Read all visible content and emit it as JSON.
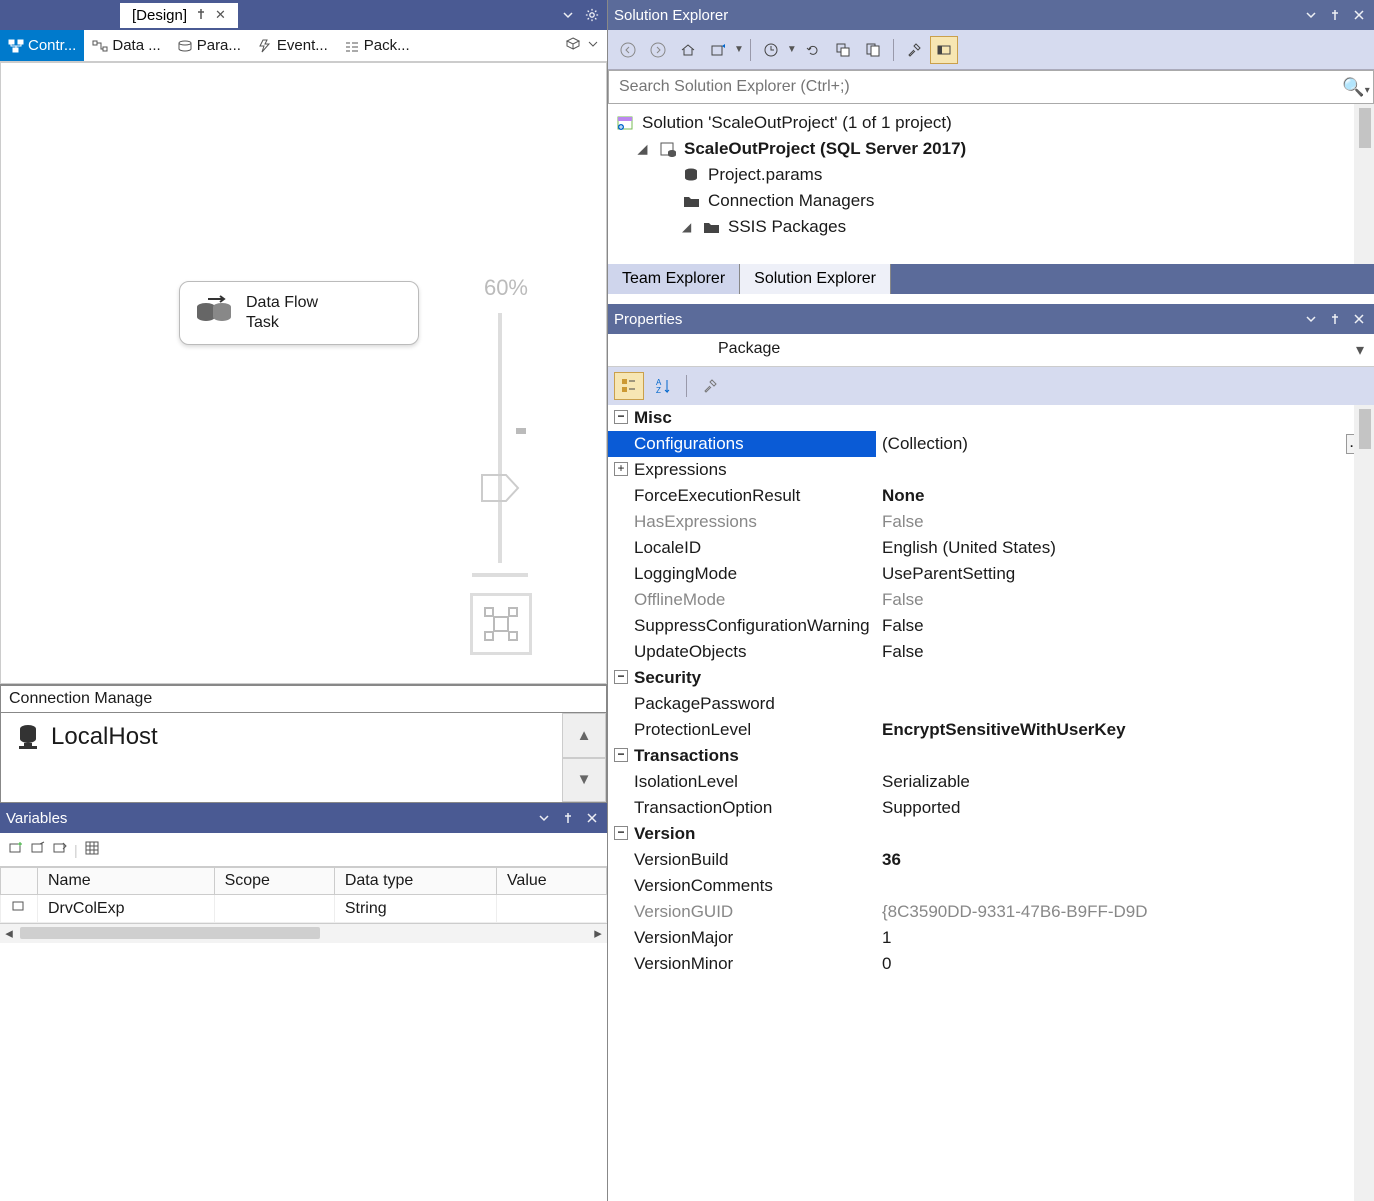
{
  "design": {
    "tab_label": "[Design]",
    "subtabs": [
      "Contr...",
      "Data ...",
      "Para...",
      "Event...",
      "Pack..."
    ],
    "active_subtab": 0,
    "task_label": "Data Flow Task",
    "zoom_label": "60%"
  },
  "connection_manager": {
    "header": "Connection Manage",
    "item": "LocalHost"
  },
  "variables": {
    "title": "Variables",
    "columns": [
      "Name",
      "Scope",
      "Data type",
      "Value"
    ],
    "rows": [
      {
        "name": "DrvColExp",
        "scope": "",
        "data_type": "String",
        "value": ""
      }
    ]
  },
  "solution_explorer": {
    "title": "Solution Explorer",
    "search_placeholder": "Search Solution Explorer (Ctrl+;)",
    "tree": {
      "solution": "Solution 'ScaleOutProject' (1 of 1 project)",
      "project": "ScaleOutProject (SQL Server 2017)",
      "items": [
        "Project.params",
        "Connection Managers",
        "SSIS Packages"
      ]
    },
    "bottom_tabs": [
      "Team Explorer",
      "Solution Explorer"
    ]
  },
  "properties": {
    "title": "Properties",
    "selected_object": "Package",
    "categories": [
      {
        "name": "Misc",
        "rows": [
          {
            "name": "Configurations",
            "value": "(Collection)",
            "selected": true,
            "ellipsis": true
          },
          {
            "name": "Expressions",
            "value": "",
            "expander": true
          },
          {
            "name": "ForceExecutionResult",
            "value": "None",
            "bold": true
          },
          {
            "name": "HasExpressions",
            "value": "False",
            "dim": true
          },
          {
            "name": "LocaleID",
            "value": "English (United States)"
          },
          {
            "name": "LoggingMode",
            "value": "UseParentSetting"
          },
          {
            "name": "OfflineMode",
            "value": "False",
            "dim": true
          },
          {
            "name": "SuppressConfigurationWarning",
            "value": "False"
          },
          {
            "name": "UpdateObjects",
            "value": "False"
          }
        ]
      },
      {
        "name": "Security",
        "rows": [
          {
            "name": "PackagePassword",
            "value": ""
          },
          {
            "name": "ProtectionLevel",
            "value": "EncryptSensitiveWithUserKey",
            "bold": true
          }
        ]
      },
      {
        "name": "Transactions",
        "rows": [
          {
            "name": "IsolationLevel",
            "value": "Serializable"
          },
          {
            "name": "TransactionOption",
            "value": "Supported"
          }
        ]
      },
      {
        "name": "Version",
        "rows": [
          {
            "name": "VersionBuild",
            "value": "36",
            "bold": true
          },
          {
            "name": "VersionComments",
            "value": ""
          },
          {
            "name": "VersionGUID",
            "value": "{8C3590DD-9331-47B6-B9FF-D9D",
            "dim": true
          },
          {
            "name": "VersionMajor",
            "value": "1"
          },
          {
            "name": "VersionMinor",
            "value": "0"
          }
        ]
      }
    ]
  },
  "colors": {
    "titleb�ar": "#4a5a93",
    "accent_blue": "#007acc",
    "selection_blue": "#0a5bd6",
    "toolbar_bg": "#d6dbef",
    "active_btn": "#f7e6b3"
  }
}
